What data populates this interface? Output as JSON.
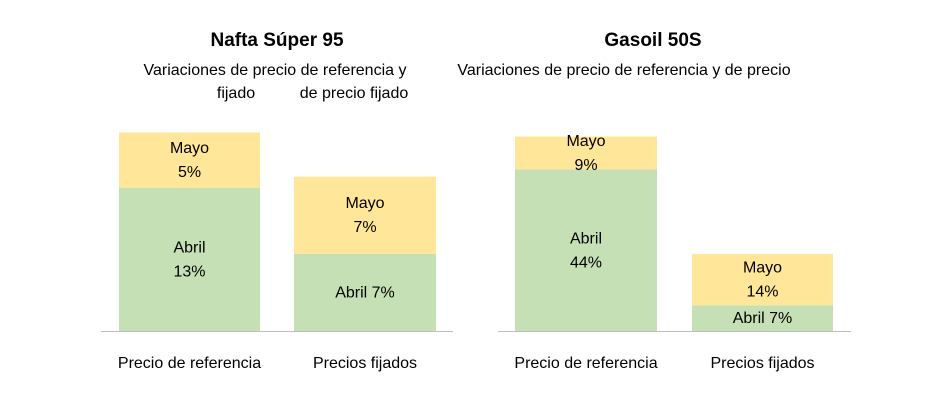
{
  "chart_data": [
    {
      "type": "bar",
      "stacked": true,
      "title": "Nafta Súper 95",
      "subtitle_lines": [
        "Variaciones de precio de referencia y",
        "fijado"
      ],
      "subtitle_right_line": "de precio fijado",
      "categories": [
        "Precio de referencia",
        "Precios fijados"
      ],
      "series": [
        {
          "name": "Abril",
          "values": [
            13,
            7
          ],
          "labels": [
            [
              "Abril",
              "13%"
            ],
            [
              "Abril 7%"
            ]
          ]
        },
        {
          "name": "Mayo",
          "values": [
            5,
            7
          ],
          "labels": [
            [
              "Mayo",
              "5%"
            ],
            [
              "Mayo",
              "7%"
            ]
          ]
        }
      ],
      "ylim": [
        0,
        18.5
      ],
      "grid": false,
      "legend": "none"
    },
    {
      "type": "bar",
      "stacked": true,
      "title": "Gasoil 50S",
      "subtitle_lines": [
        "Variaciones de precio de referencia y de precio"
      ],
      "categories": [
        "Precio de referencia",
        "Precios fijados"
      ],
      "series": [
        {
          "name": "Abril",
          "values": [
            44,
            7
          ],
          "labels": [
            [
              "Abril",
              "44%"
            ],
            [
              "Abril 7%"
            ]
          ]
        },
        {
          "name": "Mayo",
          "values": [
            9,
            14
          ],
          "labels": [
            [
              "Mayo",
              "9%"
            ],
            [
              "Mayo",
              "14%"
            ]
          ]
        }
      ],
      "ylim": [
        0,
        54.5
      ],
      "grid": false,
      "legend": "none"
    }
  ],
  "colors": {
    "abril": "#c5e0b4",
    "mayo": "#ffe699",
    "axis": "#bfbfbf",
    "text": "#000000"
  }
}
